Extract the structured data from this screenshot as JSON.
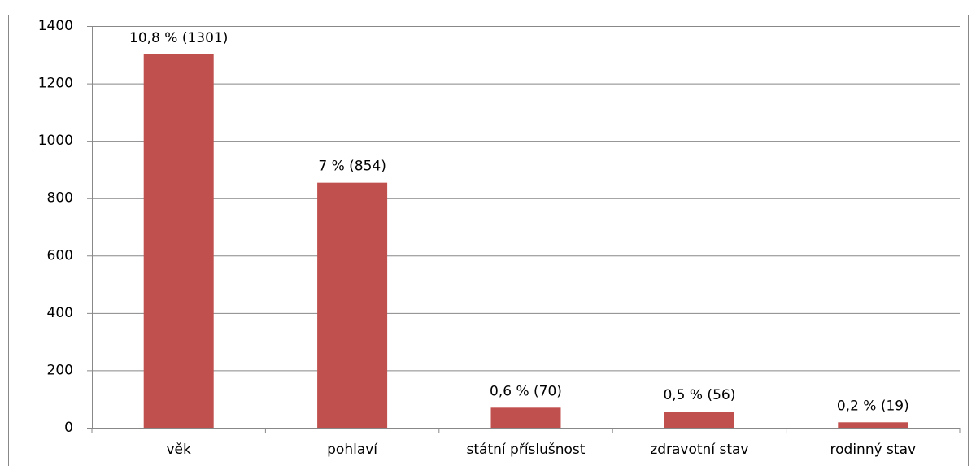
{
  "chart_data": {
    "type": "bar",
    "categories": [
      "věk",
      "pohlaví",
      "státní příslušnost",
      "zdravotní stav",
      "rodinný stav"
    ],
    "values": [
      1301,
      854,
      70,
      56,
      19
    ],
    "value_labels": [
      "10,8 % (1301)",
      "7 % (854)",
      "0,6 % (70)",
      "0,5 % (56)",
      "0,2 % (19)"
    ],
    "color": "#c0504d",
    "ylim": [
      0,
      1400
    ],
    "yticks": [
      0,
      200,
      400,
      600,
      800,
      1000,
      1200,
      1400
    ],
    "grid": true
  }
}
